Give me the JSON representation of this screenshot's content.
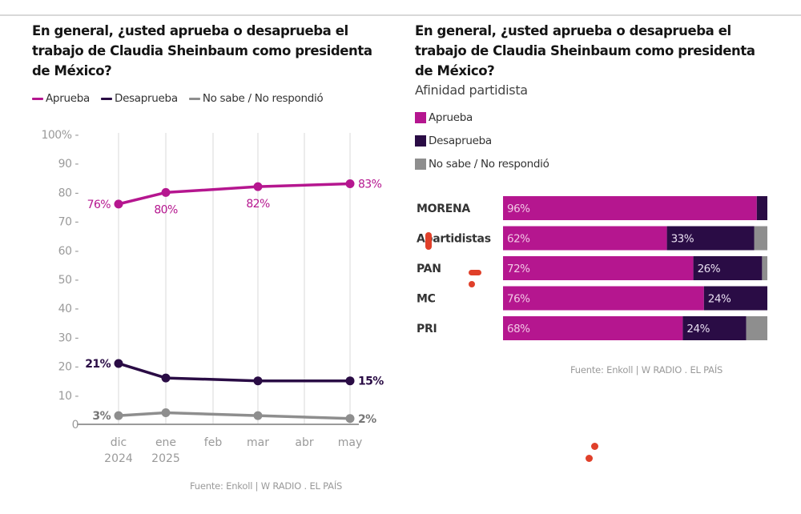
{
  "colors": {
    "aprueba": "#b5168f",
    "desaprueba": "#2a0c45",
    "no_sabe": "#8e8e8e",
    "grid": "#e6e6e6",
    "axis_text": "#9a9a9a"
  },
  "chart_data": [
    {
      "type": "line",
      "title": "En general, ¿usted aprueba o desaprueba el trabajo de Claudia Sheinbaum como presidenta de México?",
      "legend_position": "top-left",
      "categories": [
        "dic\n2024",
        "ene\n2025",
        "feb",
        "mar",
        "abr",
        "may"
      ],
      "category_labels": [
        [
          "dic",
          "2024"
        ],
        [
          "ene",
          "2025"
        ],
        [
          "feb",
          ""
        ],
        [
          "mar",
          ""
        ],
        [
          "abr",
          ""
        ],
        [
          "may",
          ""
        ]
      ],
      "ylim": [
        0,
        100
      ],
      "yticks": [
        "0",
        "10 -",
        "20 -",
        "30 -",
        "40 -",
        "50 -",
        "60 -",
        "70 -",
        "80 -",
        "90 -",
        "100% -"
      ],
      "grid": "vertical",
      "series": [
        {
          "name": "Aprueba",
          "color": "#b5168f",
          "points": [
            [
              0,
              76
            ],
            [
              1,
              80
            ],
            [
              3,
              82
            ],
            [
              5,
              83
            ]
          ],
          "labels": [
            {
              "index": 0,
              "text": "76%",
              "pos": "left"
            },
            {
              "index": 1,
              "text": "80%",
              "pos": "below"
            },
            {
              "index": 2,
              "text": "82%",
              "pos": "below"
            },
            {
              "index": 3,
              "text": "83%",
              "pos": "right"
            }
          ]
        },
        {
          "name": "Desaprueba",
          "color": "#2a0c45",
          "points": [
            [
              0,
              21
            ],
            [
              1,
              16
            ],
            [
              3,
              15
            ],
            [
              5,
              15
            ]
          ],
          "labels": [
            {
              "index": 0,
              "text": "21%",
              "pos": "left"
            },
            {
              "index": 3,
              "text": "15%",
              "pos": "right"
            }
          ]
        },
        {
          "name": "No sabe / No respondió",
          "color": "#8e8e8e",
          "points": [
            [
              0,
              3
            ],
            [
              1,
              4
            ],
            [
              3,
              3
            ],
            [
              5,
              2
            ]
          ],
          "labels": [
            {
              "index": 0,
              "text": "3%",
              "pos": "left"
            },
            {
              "index": 3,
              "text": "2%",
              "pos": "right"
            }
          ]
        }
      ],
      "source": "Fuente: Enkoll | W RADIO . EL PAÍS"
    },
    {
      "type": "bar",
      "orientation": "horizontal-stacked",
      "title": "En general, ¿usted aprueba o desaprueba el trabajo de Claudia Sheinbaum como presidenta de México?",
      "subtitle": "Afinidad partidista",
      "legend_position": "top-left",
      "categories": [
        "MORENA",
        "Apartidistas",
        "PAN",
        "MC",
        "PRI"
      ],
      "series": [
        {
          "name": "Aprueba",
          "color": "#b5168f",
          "values": [
            96,
            62,
            72,
            76,
            68
          ],
          "labels": [
            "96%",
            "62%",
            "72%",
            "76%",
            "68%"
          ]
        },
        {
          "name": "Desaprueba",
          "color": "#2a0c45",
          "values": [
            4,
            33,
            26,
            24,
            24
          ],
          "labels": [
            "",
            "33%",
            "26%",
            "24%",
            "24%"
          ]
        },
        {
          "name": "No sabe / No respondió",
          "color": "#8e8e8e",
          "values": [
            0,
            5,
            2,
            0,
            8
          ],
          "labels": [
            "",
            "",
            "",
            "",
            ""
          ]
        }
      ],
      "xlim": [
        0,
        100
      ],
      "source": "Fuente: Enkoll | W RADIO . EL PAÍS"
    }
  ]
}
